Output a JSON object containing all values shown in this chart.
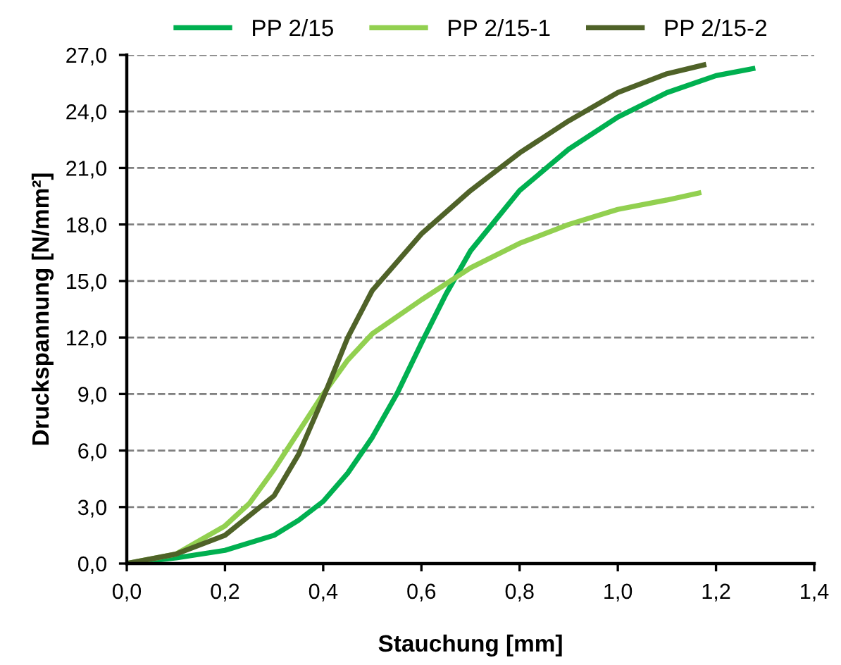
{
  "chart_data": {
    "type": "line",
    "xlabel": "Stauchung [mm]",
    "ylabel": "Druckspannung [N/mm²]",
    "xlim": [
      0,
      1.4
    ],
    "ylim": [
      0,
      27
    ],
    "xticks": [
      {
        "value": 0,
        "label": "0,0"
      },
      {
        "value": 0.2,
        "label": "0,2"
      },
      {
        "value": 0.4,
        "label": "0,4"
      },
      {
        "value": 0.6,
        "label": "0,6"
      },
      {
        "value": 0.8,
        "label": "0,8"
      },
      {
        "value": 1.0,
        "label": "1,0"
      },
      {
        "value": 1.2,
        "label": "1,2"
      },
      {
        "value": 1.4,
        "label": "1,4"
      }
    ],
    "yticks": [
      {
        "value": 0,
        "label": "0,0"
      },
      {
        "value": 3,
        "label": "3,0"
      },
      {
        "value": 6,
        "label": "6,0"
      },
      {
        "value": 9,
        "label": "9,0"
      },
      {
        "value": 12,
        "label": "12,0"
      },
      {
        "value": 15,
        "label": "15,0"
      },
      {
        "value": 18,
        "label": "18,0"
      },
      {
        "value": 21,
        "label": "21,0"
      },
      {
        "value": 24,
        "label": "24,0"
      },
      {
        "value": 27,
        "label": "27,0"
      }
    ],
    "grid": "y",
    "legend": "top",
    "marker": "none",
    "line_style": "solid",
    "series": [
      {
        "name": "PP 2/15",
        "color": "#00b050",
        "x": [
          0,
          0.1,
          0.2,
          0.3,
          0.35,
          0.4,
          0.45,
          0.5,
          0.55,
          0.6,
          0.65,
          0.7,
          0.8,
          0.9,
          1.0,
          1.1,
          1.2,
          1.28
        ],
        "values": [
          0,
          0.3,
          0.7,
          1.5,
          2.3,
          3.3,
          4.8,
          6.7,
          9.0,
          11.7,
          14.3,
          16.6,
          19.8,
          22.0,
          23.7,
          25.0,
          25.9,
          26.3
        ]
      },
      {
        "name": "PP 2/15-1",
        "color": "#92d050",
        "x": [
          0,
          0.1,
          0.2,
          0.25,
          0.3,
          0.35,
          0.4,
          0.45,
          0.5,
          0.6,
          0.7,
          0.8,
          0.9,
          1.0,
          1.1,
          1.17
        ],
        "values": [
          0,
          0.5,
          2.0,
          3.2,
          5.0,
          7.0,
          9.0,
          10.8,
          12.2,
          14.0,
          15.7,
          17.0,
          18.0,
          18.8,
          19.3,
          19.7
        ]
      },
      {
        "name": "PP 2/15-2",
        "color": "#4f6228",
        "x": [
          0,
          0.1,
          0.2,
          0.3,
          0.35,
          0.4,
          0.45,
          0.5,
          0.6,
          0.7,
          0.8,
          0.9,
          1.0,
          1.1,
          1.18
        ],
        "values": [
          0,
          0.5,
          1.5,
          3.6,
          5.8,
          8.8,
          12.0,
          14.5,
          17.5,
          19.8,
          21.8,
          23.5,
          25.0,
          26.0,
          26.5
        ]
      }
    ]
  }
}
